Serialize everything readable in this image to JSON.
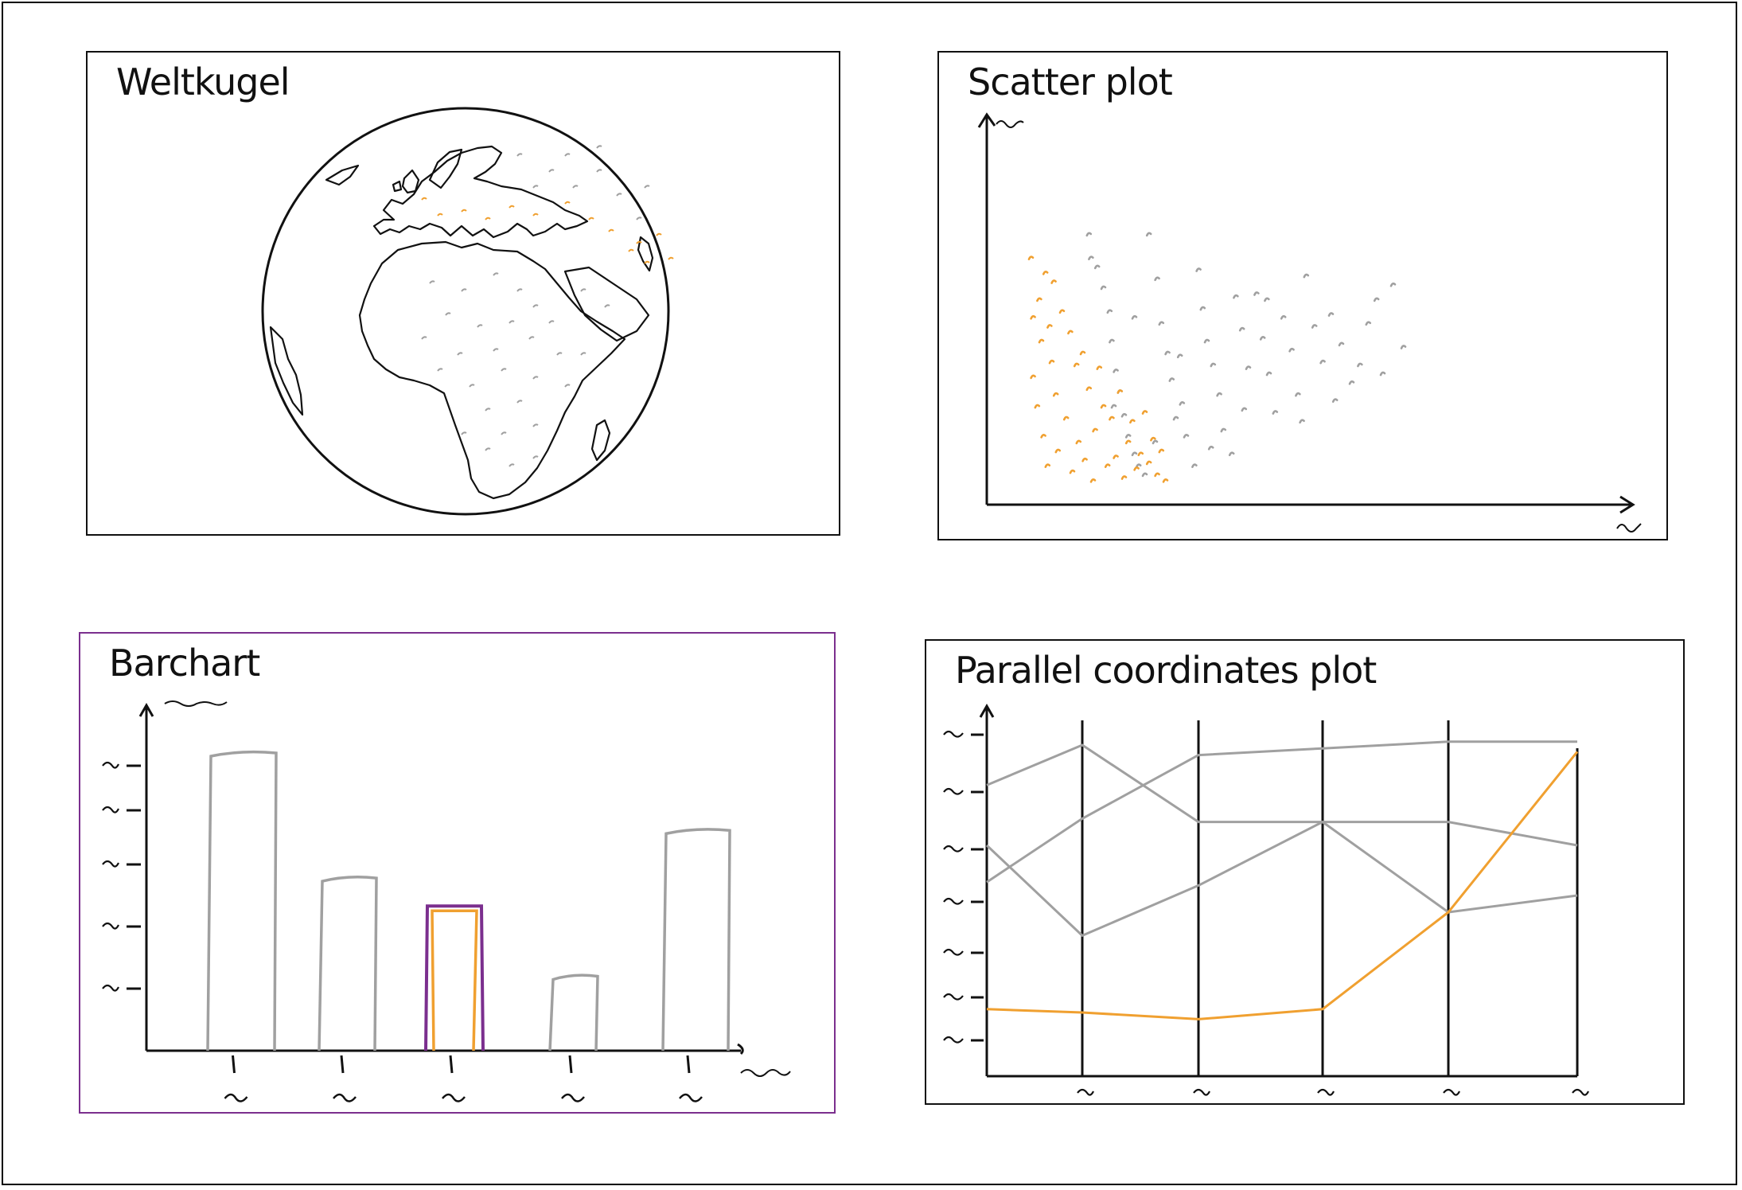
{
  "panels": {
    "globe": {
      "title": "Weltkugel"
    },
    "scatter": {
      "title": "Scatter plot"
    },
    "bar": {
      "title": "Barchart"
    },
    "pcp": {
      "title": "Parallel coordinates plot"
    }
  },
  "colors": {
    "highlight": "#f0a030",
    "context": "#a0a0a0",
    "selection": "#7b2f8e",
    "ink": "#111111"
  },
  "chart_data": [
    {
      "type": "scatter",
      "series": [
        {
          "color": "#a0a0a0",
          "points": [
            [
              33,
              88
            ],
            [
              34,
              80
            ],
            [
              37,
              77
            ],
            [
              40,
              70
            ],
            [
              43,
              62
            ],
            [
              44,
              52
            ],
            [
              46,
              42
            ],
            [
              48,
              35
            ],
            [
              50,
              27
            ],
            [
              52,
              20
            ],
            [
              55,
              14
            ],
            [
              57,
              10
            ],
            [
              60,
              7
            ],
            [
              62,
              88
            ],
            [
              66,
              73
            ],
            [
              68,
              58
            ],
            [
              71,
              48
            ],
            [
              73,
              39
            ],
            [
              75,
              26
            ],
            [
              78,
              31
            ],
            [
              80,
              20
            ],
            [
              84,
              10
            ],
            [
              86,
              76
            ],
            [
              88,
              63
            ],
            [
              90,
              52
            ],
            [
              93,
              44
            ],
            [
              96,
              34
            ],
            [
              98,
              22
            ],
            [
              102,
              14
            ],
            [
              104,
              67
            ],
            [
              107,
              56
            ],
            [
              110,
              43
            ],
            [
              114,
              68
            ],
            [
              117,
              53
            ],
            [
              120,
              41
            ],
            [
              123,
              28
            ],
            [
              127,
              60
            ],
            [
              131,
              49
            ],
            [
              134,
              34
            ],
            [
              138,
              74
            ],
            [
              142,
              57
            ],
            [
              146,
              45
            ],
            [
              150,
              61
            ],
            [
              155,
              51
            ],
            [
              160,
              38
            ],
            [
              164,
              44
            ],
            [
              168,
              58
            ],
            [
              175,
              41
            ],
            [
              180,
              71
            ],
            [
              185,
              50
            ],
            [
              45,
              30
            ],
            [
              55,
              60
            ],
            [
              65,
              18
            ],
            [
              77,
              47
            ],
            [
              92,
              16
            ],
            [
              108,
              29
            ],
            [
              119,
              66
            ],
            [
              136,
              25
            ],
            [
              152,
              32
            ],
            [
              172,
              66
            ]
          ]
        },
        {
          "color": "#f0a030",
          "points": [
            [
              5,
              80
            ],
            [
              6,
              60
            ],
            [
              6,
              40
            ],
            [
              8,
              30
            ],
            [
              9,
              66
            ],
            [
              10,
              52
            ],
            [
              11,
              20
            ],
            [
              12,
              75
            ],
            [
              13,
              10
            ],
            [
              14,
              57
            ],
            [
              15,
              45
            ],
            [
              16,
              72
            ],
            [
              17,
              34
            ],
            [
              18,
              15
            ],
            [
              20,
              62
            ],
            [
              22,
              26
            ],
            [
              24,
              55
            ],
            [
              25,
              8
            ],
            [
              27,
              44
            ],
            [
              28,
              18
            ],
            [
              30,
              48
            ],
            [
              31,
              12
            ],
            [
              33,
              36
            ],
            [
              35,
              5
            ],
            [
              36,
              22
            ],
            [
              38,
              43
            ],
            [
              40,
              30
            ],
            [
              42,
              10
            ],
            [
              44,
              26
            ],
            [
              46,
              13
            ],
            [
              48,
              35
            ],
            [
              50,
              6
            ],
            [
              52,
              18
            ],
            [
              54,
              25
            ],
            [
              56,
              9
            ],
            [
              58,
              14
            ],
            [
              60,
              28
            ],
            [
              62,
              11
            ],
            [
              64,
              19
            ],
            [
              66,
              7
            ],
            [
              68,
              15
            ],
            [
              70,
              5
            ]
          ]
        }
      ]
    },
    {
      "type": "bar",
      "categories": [
        "",
        "",
        "",
        "",
        ""
      ],
      "values": [
        100,
        58,
        47,
        25,
        74
      ],
      "highlighted_index": 2,
      "ylim": [
        0,
        110
      ]
    },
    {
      "type": "line",
      "categories": [
        "",
        "",
        "",
        "",
        "",
        ""
      ],
      "ylim": [
        0,
        100
      ],
      "series": [
        {
          "color": "#a0a0a0",
          "values": [
            83,
            95,
            72,
            72,
            72,
            65
          ]
        },
        {
          "color": "#a0a0a0",
          "values": [
            65,
            38,
            53,
            72,
            45,
            50
          ]
        },
        {
          "color": "#a0a0a0",
          "values": [
            54,
            73,
            92,
            94,
            96,
            96
          ]
        },
        {
          "color": "#f0a030",
          "values": [
            16,
            15,
            13,
            16,
            45,
            93
          ]
        }
      ]
    }
  ]
}
